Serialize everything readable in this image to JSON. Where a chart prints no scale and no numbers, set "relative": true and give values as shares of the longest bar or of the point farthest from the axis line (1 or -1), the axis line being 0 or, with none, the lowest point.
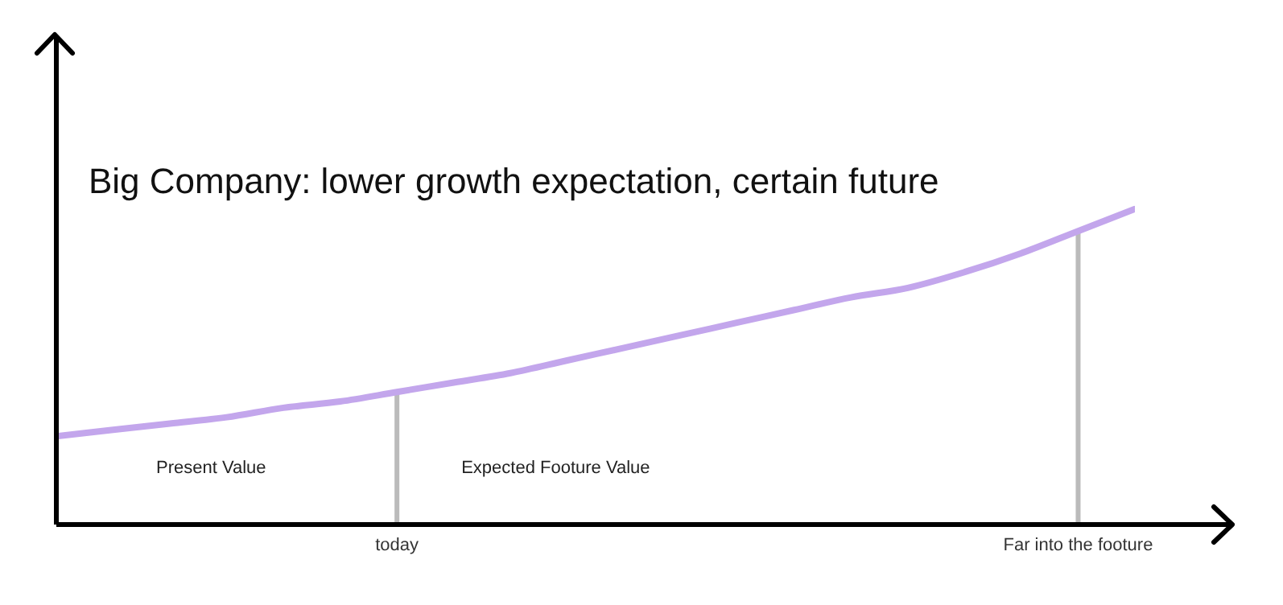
{
  "chart_data": {
    "type": "line",
    "title": "Big Company: lower growth expectation, certain future",
    "relative": true,
    "categories": [
      null,
      null,
      null,
      null,
      null,
      null,
      "today",
      null,
      null,
      null,
      null,
      null,
      null,
      null,
      null,
      null,
      null,
      null,
      "Far into the footure",
      null
    ],
    "series": [
      {
        "color": "#c3a6ec",
        "values": [
          0.28,
          0.3,
          0.32,
          0.34,
          0.37,
          0.39,
          0.42,
          0.45,
          0.48,
          0.52,
          0.56,
          0.6,
          0.64,
          0.68,
          0.72,
          0.75,
          0.8,
          0.86,
          0.93,
          1.0
        ]
      }
    ],
    "ref_lines": [
      {
        "axis": "x",
        "value": "today",
        "color": "#bbbbbb"
      },
      {
        "axis": "x",
        "value": "Far into the footure",
        "color": "#bbbbbb"
      }
    ],
    "annotations": [
      "Present Value",
      "Expected Footure Value"
    ],
    "marker": "none",
    "line_style": "solid"
  }
}
